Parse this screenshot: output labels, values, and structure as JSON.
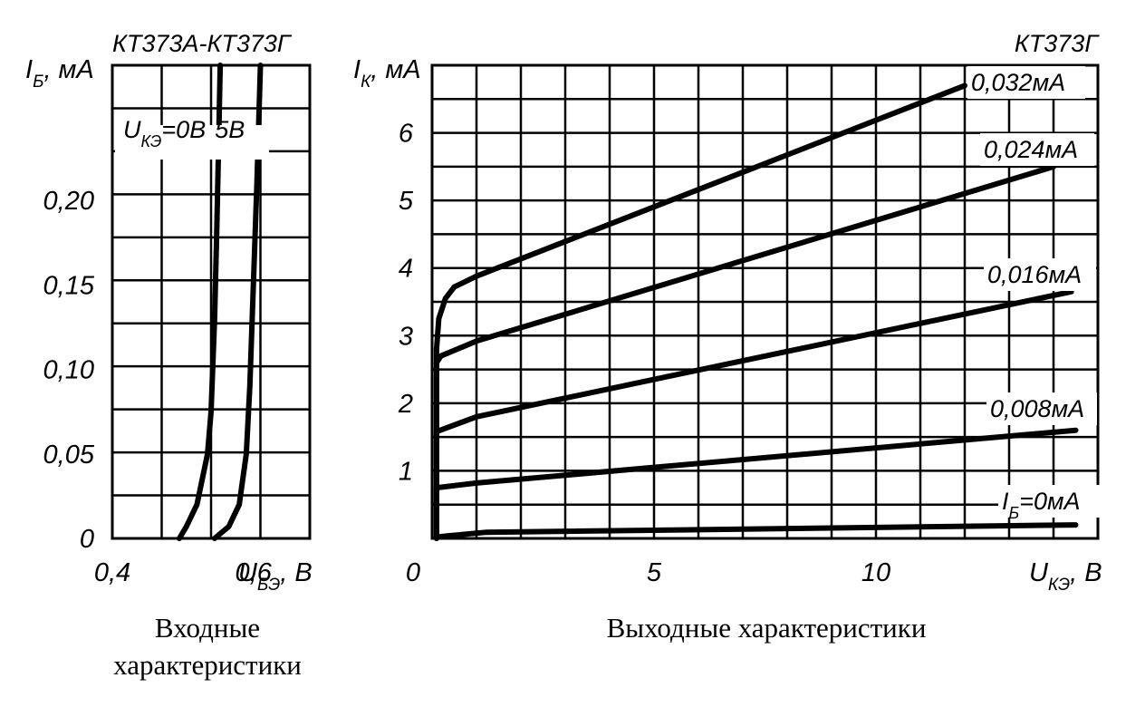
{
  "chart_data": [
    {
      "type": "line",
      "title": "КТ373А-КТ373Г",
      "caption": [
        "Входные",
        "характеристики"
      ],
      "ylabel": {
        "main": "I",
        "sub": "Б",
        "unit": ", мА"
      },
      "xlabel": {
        "main": "U",
        "sub": "БЭ",
        "unit": ", В"
      },
      "xlim": [
        0.4,
        0.68
      ],
      "ylim": [
        0,
        0.28
      ],
      "x_ticks": [
        "0,4",
        "0,6"
      ],
      "y_ticks": [
        "0",
        "0,05",
        "0,10",
        "0,15",
        "0,20"
      ],
      "curve_label": {
        "main": "U",
        "sub": "КЭ",
        "text1": "=0В",
        "text2": "5В"
      },
      "series": [
        {
          "name": "0В",
          "points": [
            [
              0.495,
              0
            ],
            [
              0.505,
              0.007
            ],
            [
              0.52,
              0.02
            ],
            [
              0.535,
              0.05
            ],
            [
              0.54,
              0.075
            ],
            [
              0.545,
              0.13
            ],
            [
              0.548,
              0.18
            ],
            [
              0.551,
              0.24
            ],
            [
              0.553,
              0.28
            ]
          ]
        },
        {
          "name": "5В",
          "points": [
            [
              0.545,
              0
            ],
            [
              0.565,
              0.007
            ],
            [
              0.58,
              0.02
            ],
            [
              0.59,
              0.05
            ],
            [
              0.595,
              0.09
            ],
            [
              0.6,
              0.15
            ],
            [
              0.605,
              0.21
            ],
            [
              0.61,
              0.28
            ]
          ]
        }
      ]
    },
    {
      "type": "line",
      "title": "КТ373Г",
      "caption": "Выходные характеристики",
      "ylabel": {
        "main": "I",
        "sub": "К",
        "unit": ", мА"
      },
      "xlabel": {
        "main": "U",
        "sub": "КЭ",
        "unit": ", В"
      },
      "xlim": [
        0,
        15
      ],
      "ylim": [
        0,
        7
      ],
      "x_ticks": [
        "0",
        "5",
        "10"
      ],
      "y_ticks": [
        "1",
        "2",
        "3",
        "4",
        "5",
        "6"
      ],
      "series": [
        {
          "name": "0,032мА",
          "points": [
            [
              0.1,
              0
            ],
            [
              0.1,
              2.8
            ],
            [
              0.15,
              3.25
            ],
            [
              0.3,
              3.55
            ],
            [
              0.5,
              3.72
            ],
            [
              1,
              3.88
            ],
            [
              12,
              6.7
            ]
          ]
        },
        {
          "name": "0,024мА",
          "points": [
            [
              0.1,
              0
            ],
            [
              0.1,
              2.6
            ],
            [
              0.2,
              2.7
            ],
            [
              1,
              2.92
            ],
            [
              14,
              5.5
            ]
          ]
        },
        {
          "name": "0,016мА",
          "points": [
            [
              0.1,
              0
            ],
            [
              0.1,
              1.58
            ],
            [
              1,
              1.8
            ],
            [
              14.4,
              3.65
            ]
          ]
        },
        {
          "name": "0,008мА",
          "points": [
            [
              0.1,
              0
            ],
            [
              0.1,
              0.75
            ],
            [
              1,
              0.82
            ],
            [
              14.5,
              1.6
            ]
          ]
        },
        {
          "name": "I",
          "label_sub": "Б",
          "label_text": "=0мА",
          "points": [
            [
              0.1,
              0.02
            ],
            [
              0.4,
              0.04
            ],
            [
              1.2,
              0.09
            ],
            [
              14.5,
              0.2
            ]
          ]
        }
      ]
    }
  ]
}
